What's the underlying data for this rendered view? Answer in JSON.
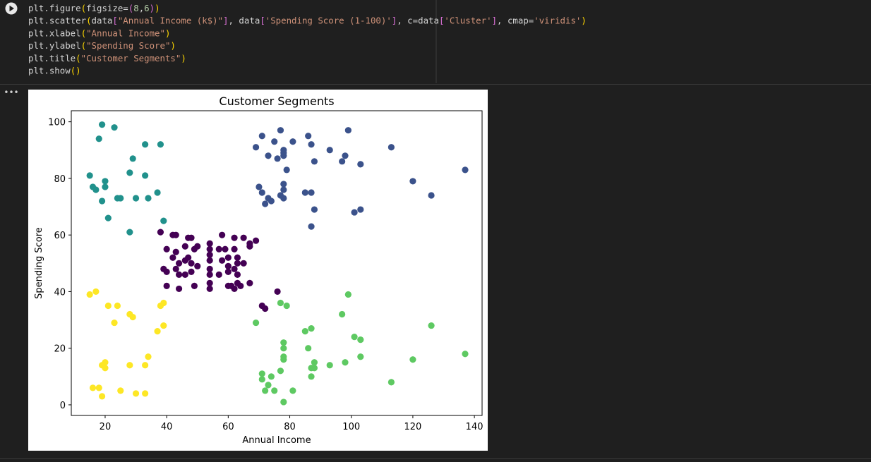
{
  "code": [
    [
      {
        "text": "plt.figure",
        "color": "#d4d4d4"
      },
      {
        "text": "(",
        "color": "#ffd700"
      },
      {
        "text": "figsize=",
        "color": "#d4d4d4"
      },
      {
        "text": "(",
        "color": "#da70d6"
      },
      {
        "text": "8",
        "color": "#b5cea8"
      },
      {
        "text": ",",
        "color": "#d4d4d4"
      },
      {
        "text": "6",
        "color": "#b5cea8"
      },
      {
        "text": ")",
        "color": "#da70d6"
      },
      {
        "text": ")",
        "color": "#ffd700"
      }
    ],
    [
      {
        "text": "plt.scatter",
        "color": "#d4d4d4"
      },
      {
        "text": "(",
        "color": "#ffd700"
      },
      {
        "text": "data",
        "color": "#d4d4d4"
      },
      {
        "text": "[",
        "color": "#da70d6"
      },
      {
        "text": "\"Annual Income (k$)\"",
        "color": "#ce9178"
      },
      {
        "text": "]",
        "color": "#da70d6"
      },
      {
        "text": ", data",
        "color": "#d4d4d4"
      },
      {
        "text": "[",
        "color": "#da70d6"
      },
      {
        "text": "'Spending Score (1-100)'",
        "color": "#ce9178"
      },
      {
        "text": "]",
        "color": "#da70d6"
      },
      {
        "text": ", c=data",
        "color": "#d4d4d4"
      },
      {
        "text": "[",
        "color": "#da70d6"
      },
      {
        "text": "'Cluster'",
        "color": "#ce9178"
      },
      {
        "text": "]",
        "color": "#da70d6"
      },
      {
        "text": ", cmap=",
        "color": "#d4d4d4"
      },
      {
        "text": "'viridis'",
        "color": "#ce9178"
      },
      {
        "text": ")",
        "color": "#ffd700"
      }
    ],
    [
      {
        "text": "plt.xlabel",
        "color": "#d4d4d4"
      },
      {
        "text": "(",
        "color": "#ffd700"
      },
      {
        "text": "\"Annual Income\"",
        "color": "#ce9178"
      },
      {
        "text": ")",
        "color": "#ffd700"
      }
    ],
    [
      {
        "text": "plt.ylabel",
        "color": "#d4d4d4"
      },
      {
        "text": "(",
        "color": "#ffd700"
      },
      {
        "text": "\"Spending Score\"",
        "color": "#ce9178"
      },
      {
        "text": ")",
        "color": "#ffd700"
      }
    ],
    [
      {
        "text": "plt.title",
        "color": "#d4d4d4"
      },
      {
        "text": "(",
        "color": "#ffd700"
      },
      {
        "text": "\"Customer Segments\"",
        "color": "#ce9178"
      },
      {
        "text": ")",
        "color": "#ffd700"
      }
    ],
    [
      {
        "text": "plt.show",
        "color": "#d4d4d4"
      },
      {
        "text": "(",
        "color": "#ffd700"
      },
      {
        "text": ")",
        "color": "#ffd700"
      }
    ]
  ],
  "output_menu": "•••",
  "chart_data": {
    "type": "scatter",
    "title": "Customer Segments",
    "x_label": "Annual Income",
    "y_label": "Spending Score",
    "xlim": [
      9,
      142.5
    ],
    "ylim": [
      -3.75,
      103.9
    ],
    "xticks": [
      20,
      40,
      60,
      80,
      100,
      120,
      140
    ],
    "yticks": [
      0,
      20,
      40,
      60,
      80,
      100
    ],
    "series": [
      {
        "color": "#440154",
        "x": [
          38,
          40,
          40,
          40,
          42,
          42,
          43,
          43,
          43,
          44,
          44,
          44,
          46,
          46,
          46,
          47,
          47,
          48,
          48,
          48,
          49,
          49,
          50,
          50,
          54,
          54,
          54,
          54,
          54,
          54,
          54,
          54,
          57,
          57,
          58,
          58,
          59,
          60,
          60,
          60,
          60,
          61,
          62,
          62,
          62,
          62,
          63,
          63,
          63,
          63,
          64,
          65,
          65,
          67,
          67,
          67,
          69,
          71,
          72,
          76,
          39
        ],
        "values": [
          61,
          55,
          47,
          42,
          60,
          52,
          60,
          54,
          48,
          50,
          46,
          41,
          51,
          56,
          46,
          59,
          52,
          59,
          50,
          47,
          55,
          42,
          49,
          56,
          57,
          55,
          53,
          51,
          48,
          46,
          43,
          41,
          55,
          46,
          60,
          51,
          55,
          52,
          49,
          47,
          42,
          42,
          59,
          55,
          48,
          41,
          52,
          50,
          46,
          43,
          42,
          59,
          50,
          56,
          57,
          43,
          58,
          35,
          34,
          40,
          48
        ]
      },
      {
        "color": "#21918c",
        "x": [
          15,
          16,
          17,
          18,
          19,
          19,
          20,
          20,
          21,
          23,
          24,
          25,
          28,
          28,
          29,
          30,
          33,
          33,
          34,
          37,
          38,
          39
        ],
        "values": [
          81,
          77,
          76,
          94,
          72,
          99,
          77,
          79,
          66,
          98,
          73,
          73,
          82,
          61,
          87,
          73,
          92,
          81,
          73,
          75,
          92,
          65
        ]
      },
      {
        "color": "#fde725",
        "x": [
          15,
          16,
          17,
          18,
          19,
          19,
          20,
          20,
          21,
          23,
          24,
          25,
          28,
          28,
          29,
          30,
          33,
          33,
          34,
          37,
          38,
          39,
          39
        ],
        "values": [
          39,
          6,
          40,
          6,
          3,
          14,
          15,
          13,
          35,
          29,
          35,
          5,
          32,
          14,
          31,
          4,
          14,
          4,
          17,
          26,
          35,
          36,
          28
        ]
      },
      {
        "color": "#3b528b",
        "x": [
          69,
          70,
          71,
          71,
          72,
          73,
          73,
          74,
          75,
          76,
          77,
          77,
          78,
          78,
          78,
          78,
          78,
          78,
          79,
          81,
          85,
          86,
          87,
          87,
          87,
          88,
          88,
          93,
          97,
          98,
          99,
          101,
          103,
          103,
          113,
          120,
          126,
          137
        ],
        "values": [
          91,
          77,
          95,
          75,
          71,
          88,
          73,
          72,
          93,
          87,
          97,
          74,
          90,
          89,
          88,
          78,
          76,
          73,
          83,
          93,
          75,
          95,
          92,
          75,
          63,
          86,
          69,
          90,
          86,
          88,
          97,
          68,
          69,
          85,
          91,
          79,
          74,
          83
        ]
      },
      {
        "color": "#5ec962",
        "x": [
          69,
          71,
          71,
          72,
          73,
          74,
          75,
          77,
          77,
          78,
          78,
          78,
          78,
          78,
          79,
          81,
          85,
          86,
          87,
          87,
          87,
          88,
          88,
          93,
          97,
          98,
          99,
          101,
          103,
          103,
          113,
          120,
          126,
          137
        ],
        "values": [
          29,
          11,
          9,
          5,
          7,
          10,
          5,
          36,
          12,
          22,
          20,
          17,
          16,
          1,
          35,
          5,
          26,
          20,
          27,
          13,
          10,
          15,
          13,
          14,
          32,
          15,
          39,
          24,
          23,
          17,
          8,
          16,
          28,
          18
        ]
      }
    ]
  }
}
